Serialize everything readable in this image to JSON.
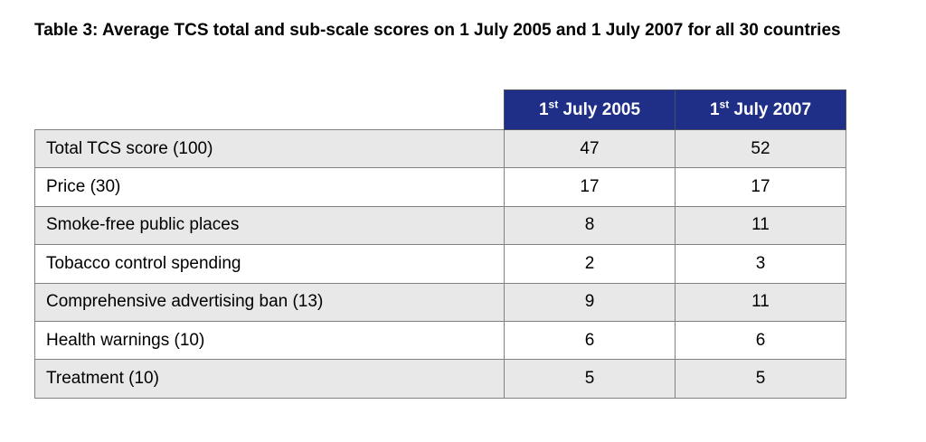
{
  "title": "Table 3: Average TCS total and sub-scale scores on 1 July 2005 and 1 July 2007 for all 30 countries",
  "colors": {
    "header_bg": "#1f2e86",
    "header_text": "#ffffff",
    "row_alt_bg": "#e8e8e8",
    "row_bg": "#ffffff",
    "border": "#828282"
  },
  "table": {
    "header_columns": [
      {
        "prefix": "1",
        "superscript": "st",
        "rest": " July 2005"
      },
      {
        "prefix": "1",
        "superscript": "st",
        "rest": " July 2007"
      }
    ],
    "rows": [
      {
        "label": "Total TCS score (100)",
        "july_2005": "47",
        "july_2007": "52"
      },
      {
        "label": "Price (30)",
        "july_2005": "17",
        "july_2007": "17"
      },
      {
        "label": "Smoke-free public places",
        "july_2005": "8",
        "july_2007": "11"
      },
      {
        "label": "Tobacco control spending",
        "july_2005": "2",
        "july_2007": "3"
      },
      {
        "label": "Comprehensive advertising ban (13)",
        "july_2005": "9",
        "july_2007": "11"
      },
      {
        "label": "Health warnings (10)",
        "july_2005": "6",
        "july_2007": "6"
      },
      {
        "label": "Treatment (10)",
        "july_2005": "5",
        "july_2007": "5"
      }
    ]
  }
}
